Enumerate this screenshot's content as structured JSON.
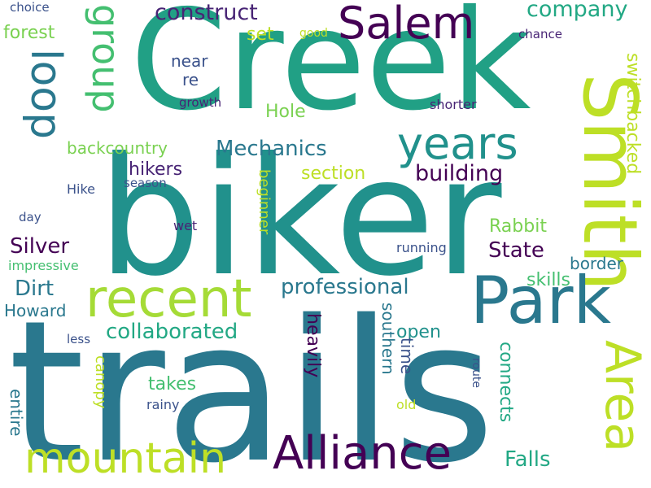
{
  "colors": {
    "background": "#ffffff",
    "palette": [
      "#440154",
      "#3b528b",
      "#2a788e",
      "#21918c",
      "#22a884",
      "#44bf70",
      "#7ad151",
      "#bddf26"
    ]
  },
  "words": [
    {
      "text": "trails",
      "color": "#2a788e"
    },
    {
      "text": "biker",
      "color": "#21918c"
    },
    {
      "text": "Creek",
      "color": "#21a085"
    },
    {
      "text": "Smith",
      "color": "#bddf26"
    },
    {
      "text": "Park",
      "color": "#2a788e"
    },
    {
      "text": "Area",
      "color": "#bddf26"
    },
    {
      "text": "recent",
      "color": "#a5db36"
    },
    {
      "text": "Salem",
      "color": "#440154"
    },
    {
      "text": "years",
      "color": "#21918c"
    },
    {
      "text": "Alliance",
      "color": "#440154"
    },
    {
      "text": "mountain",
      "color": "#bddf26"
    },
    {
      "text": "loop",
      "color": "#2a788e"
    },
    {
      "text": "group",
      "color": "#44bf70"
    },
    {
      "text": "construct",
      "color": "#482475"
    },
    {
      "text": "company",
      "color": "#22a884"
    },
    {
      "text": "switchbacked",
      "color": "#bddf26"
    },
    {
      "text": "professional",
      "color": "#2a788e"
    },
    {
      "text": "collaborated",
      "color": "#22a884"
    },
    {
      "text": "Mechanics",
      "color": "#2a788e"
    },
    {
      "text": "building",
      "color": "#440154"
    },
    {
      "text": "State",
      "color": "#440154"
    },
    {
      "text": "Silver",
      "color": "#440154"
    },
    {
      "text": "Dirt",
      "color": "#2a788e"
    },
    {
      "text": "Falls",
      "color": "#22a884"
    },
    {
      "text": "connects",
      "color": "#22a884"
    },
    {
      "text": "heavily",
      "color": "#440154"
    },
    {
      "text": "southern",
      "color": "#2a788e"
    },
    {
      "text": "backcountry",
      "color": "#7ad151"
    },
    {
      "text": "forest",
      "color": "#7ad151"
    },
    {
      "text": "set",
      "color": "#bddf26"
    },
    {
      "text": "near",
      "color": "#3b528b"
    },
    {
      "text": "re",
      "color": "#3b528b"
    },
    {
      "text": "Hole",
      "color": "#7ad151"
    },
    {
      "text": "hikers",
      "color": "#482475"
    },
    {
      "text": "section",
      "color": "#bddf26"
    },
    {
      "text": "Rabbit",
      "color": "#7ad151"
    },
    {
      "text": "border",
      "color": "#2a788e"
    },
    {
      "text": "skills",
      "color": "#44bf70"
    },
    {
      "text": "Howard",
      "color": "#2a788e"
    },
    {
      "text": "open",
      "color": "#21918c"
    },
    {
      "text": "time",
      "color": "#3b528b"
    },
    {
      "text": "takes",
      "color": "#44bf70"
    },
    {
      "text": "canopy",
      "color": "#bddf26"
    },
    {
      "text": "entire",
      "color": "#2a788e"
    },
    {
      "text": "beginner",
      "color": "#bddf26"
    },
    {
      "text": "route",
      "color": "#3b528b"
    },
    {
      "text": "Hike",
      "color": "#3b528b"
    },
    {
      "text": "season",
      "color": "#3b528b"
    },
    {
      "text": "day",
      "color": "#3b528b"
    },
    {
      "text": "wet",
      "color": "#482475"
    },
    {
      "text": "impressive",
      "color": "#44bf70"
    },
    {
      "text": "less",
      "color": "#3b528b"
    },
    {
      "text": "rainy",
      "color": "#3b528b"
    },
    {
      "text": "old",
      "color": "#bddf26"
    },
    {
      "text": "running",
      "color": "#3b528b"
    },
    {
      "text": "shorter",
      "color": "#482475"
    },
    {
      "text": "growth",
      "color": "#482475"
    },
    {
      "text": "choice",
      "color": "#3b528b"
    },
    {
      "text": "good",
      "color": "#bddf26"
    },
    {
      "text": "chance",
      "color": "#482475"
    }
  ]
}
